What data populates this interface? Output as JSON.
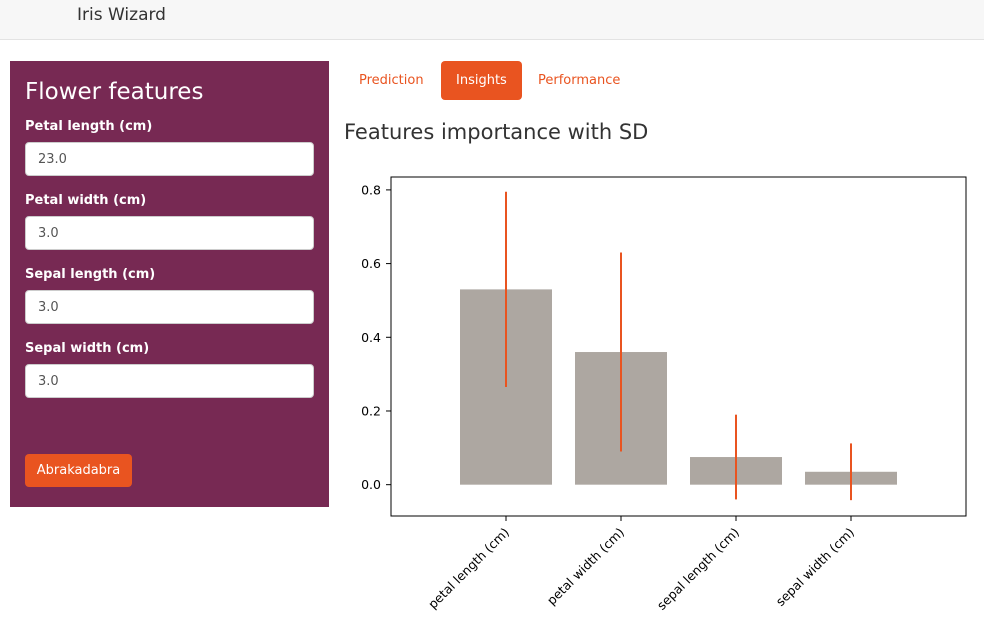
{
  "navbar": {
    "brand": "Iris Wizard"
  },
  "sidebar": {
    "title": "Flower features",
    "fields": [
      {
        "label": "Petal length (cm)",
        "value": "23.0"
      },
      {
        "label": "Petal width (cm)",
        "value": "3.0"
      },
      {
        "label": "Sepal length (cm)",
        "value": "3.0"
      },
      {
        "label": "Sepal width (cm)",
        "value": "3.0"
      }
    ],
    "submit_label": "Abrakadabra"
  },
  "tabs": [
    {
      "label": "Prediction",
      "active": false
    },
    {
      "label": "Insights",
      "active": true
    },
    {
      "label": "Performance",
      "active": false
    }
  ],
  "main": {
    "title": "Features importance with SD"
  },
  "colors": {
    "bar": "#ada7a1",
    "error": "#e95420",
    "sidebar": "#772953",
    "accent": "#e95420"
  },
  "chart_data": {
    "type": "bar",
    "categories": [
      "petal length (cm)",
      "petal width (cm)",
      "sepal length (cm)",
      "sepal width (cm)"
    ],
    "values": [
      0.53,
      0.36,
      0.075,
      0.035
    ],
    "error": [
      0.265,
      0.27,
      0.115,
      0.077
    ],
    "ylim": [
      -0.085,
      0.835
    ],
    "yticks": [
      "0.0",
      "0.2",
      "0.4",
      "0.6",
      "0.8"
    ],
    "ytick_values": [
      0,
      0.2,
      0.4,
      0.6,
      0.8
    ],
    "title": "",
    "xlabel": "",
    "ylabel": "",
    "grid": false
  }
}
